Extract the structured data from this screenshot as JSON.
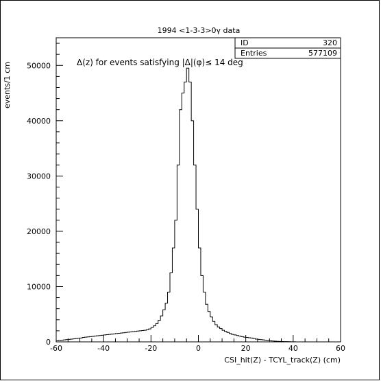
{
  "chart_data": {
    "type": "histogram",
    "title": "1994 <1-3-3>0γ data",
    "annotation": "Δ(z) for events satisfying |Δ|(φ)≤ 14 deg",
    "xlabel": "CSI_hit(Z) - TCYL_track(Z) (cm)",
    "ylabel": "events/1 cm",
    "xlim": [
      -60,
      60
    ],
    "ylim": [
      0,
      55000
    ],
    "grid": false,
    "x_ticks": [
      "-60",
      "-40",
      "-20",
      "0",
      "20",
      "40",
      "60"
    ],
    "y_ticks": [
      "0",
      "10000",
      "20000",
      "30000",
      "40000",
      "50000"
    ],
    "stats_box": {
      "rows": [
        {
          "label": "ID",
          "value": "320"
        },
        {
          "label": "Entries",
          "value": "577109"
        }
      ]
    },
    "bin_width": 1,
    "bins_from": -60,
    "values": [
      200,
      250,
      300,
      350,
      400,
      450,
      500,
      550,
      600,
      650,
      700,
      800,
      850,
      900,
      950,
      1000,
      1050,
      1100,
      1150,
      1200,
      1250,
      1300,
      1350,
      1400,
      1450,
      1500,
      1550,
      1600,
      1650,
      1700,
      1750,
      1800,
      1850,
      1900,
      1950,
      2000,
      2050,
      2100,
      2200,
      2350,
      2600,
      2900,
      3300,
      3900,
      4700,
      5800,
      7000,
      9000,
      12500,
      17000,
      22000,
      32000,
      42000,
      45000,
      47000,
      49500,
      47000,
      40000,
      32000,
      24000,
      17000,
      12000,
      9000,
      6800,
      5500,
      4500,
      3700,
      3100,
      2700,
      2400,
      2100,
      1900,
      1700,
      1500,
      1350,
      1250,
      1150,
      1050,
      950,
      850,
      800,
      750,
      700,
      600,
      500,
      450,
      400,
      350,
      300,
      250,
      200,
      150,
      120,
      100,
      80,
      60,
      50,
      40,
      30,
      20,
      10,
      5,
      0,
      0,
      0,
      0,
      0,
      0,
      0,
      0,
      0,
      0,
      0,
      0,
      0,
      0,
      0,
      0,
      0,
      0
    ]
  }
}
